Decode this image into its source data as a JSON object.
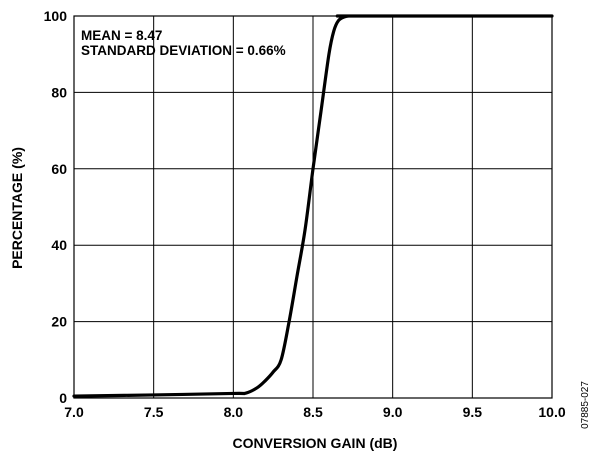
{
  "chart_data": {
    "type": "line",
    "xlabel": "CONVERSION GAIN (dB)",
    "ylabel": "PERCENTAGE (%)",
    "xlim": [
      7.0,
      10.0
    ],
    "ylim": [
      0,
      100
    ],
    "xticks": [
      7.0,
      7.5,
      8.0,
      8.5,
      9.0,
      9.5,
      10.0
    ],
    "xtick_labels": [
      "7.0",
      "7.5",
      "8.0",
      "8.5",
      "9.0",
      "9.5",
      "10.0"
    ],
    "yticks": [
      0,
      20,
      40,
      60,
      80,
      100
    ],
    "ytick_labels": [
      "0",
      "20",
      "40",
      "60",
      "80",
      "100"
    ],
    "grid": true,
    "annotations": [
      "MEAN = 8.47",
      "STANDARD DEVIATION = 0.66%"
    ],
    "figure_id": "07885-027",
    "series": [
      {
        "color": "#000000",
        "x": [
          7.0,
          7.5,
          8.0,
          8.08,
          8.15,
          8.2,
          8.25,
          8.3,
          8.35,
          8.4,
          8.45,
          8.5,
          8.55,
          8.6,
          8.63,
          8.66,
          8.7,
          8.73,
          8.75,
          10.0
        ],
        "y": [
          0.5,
          0.8,
          1.2,
          1.3,
          2.7,
          4.5,
          6.8,
          10,
          20,
          32,
          44,
          60,
          75,
          90,
          96,
          98.8,
          99.8,
          100,
          100,
          100
        ]
      }
    ]
  }
}
